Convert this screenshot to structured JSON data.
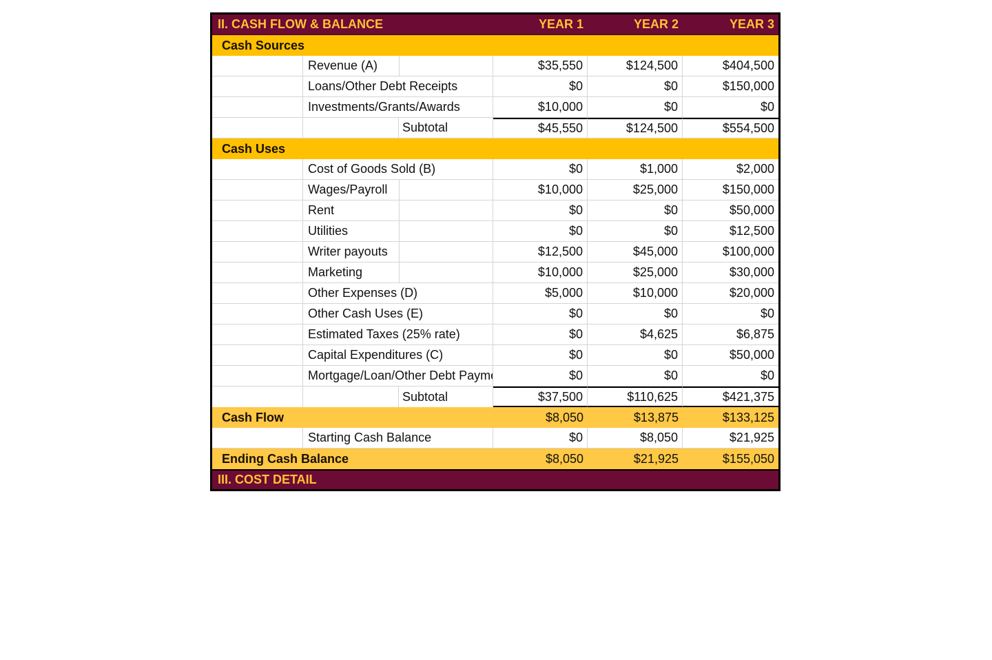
{
  "document": {
    "section_header": {
      "title": "II. CASH FLOW & BALANCE",
      "year_columns": [
        "YEAR 1",
        "YEAR 2",
        "YEAR 3"
      ]
    },
    "next_section_header": {
      "title": "III. COST DETAIL"
    },
    "colors": {
      "maroon": "#6C0B34",
      "gold_section": "#FFC000",
      "gold_total": "#FFC845",
      "gold_text": "#FFC233",
      "gridline": "#D5D5D5",
      "border": "#000000",
      "text": "#111111"
    },
    "rows": [
      {
        "type": "section",
        "label": "Cash Sources"
      },
      {
        "type": "data",
        "label": "Revenue (A)",
        "divider": true,
        "values": [
          "$35,550",
          "$124,500",
          "$404,500"
        ]
      },
      {
        "type": "data",
        "label": "Loans/Other Debt Receipts",
        "divider": false,
        "values": [
          "$0",
          "$0",
          "$150,000"
        ]
      },
      {
        "type": "data",
        "label": "Investments/Grants/Awards",
        "divider": false,
        "values": [
          "$10,000",
          "$0",
          "$0"
        ]
      },
      {
        "type": "subtotal",
        "label": "Subtotal",
        "border_top": true,
        "border_bottom": false,
        "values": [
          "$45,550",
          "$124,500",
          "$554,500"
        ]
      },
      {
        "type": "section",
        "label": "Cash Uses"
      },
      {
        "type": "data",
        "label": "Cost of Goods Sold (B)",
        "divider": false,
        "values": [
          "$0",
          "$1,000",
          "$2,000"
        ]
      },
      {
        "type": "data",
        "label": "Wages/Payroll",
        "divider": true,
        "values": [
          "$10,000",
          "$25,000",
          "$150,000"
        ]
      },
      {
        "type": "data",
        "label": "Rent",
        "divider": true,
        "values": [
          "$0",
          "$0",
          "$50,000"
        ]
      },
      {
        "type": "data",
        "label": "Utilities",
        "divider": true,
        "values": [
          "$0",
          "$0",
          "$12,500"
        ]
      },
      {
        "type": "data",
        "label": "Writer payouts",
        "divider": true,
        "values": [
          "$12,500",
          "$45,000",
          "$100,000"
        ]
      },
      {
        "type": "data",
        "label": "Marketing",
        "divider": true,
        "values": [
          "$10,000",
          "$25,000",
          "$30,000"
        ]
      },
      {
        "type": "data",
        "label": "Other Expenses (D)",
        "divider": false,
        "values": [
          "$5,000",
          "$10,000",
          "$20,000"
        ]
      },
      {
        "type": "data",
        "label": "Other Cash Uses (E)",
        "divider": false,
        "values": [
          "$0",
          "$0",
          "$0"
        ]
      },
      {
        "type": "data",
        "label": "Estimated Taxes (25% rate)",
        "divider": false,
        "values": [
          "$0",
          "$4,625",
          "$6,875"
        ]
      },
      {
        "type": "data",
        "label": "Capital Expenditures (C)",
        "divider": false,
        "values": [
          "$0",
          "$0",
          "$50,000"
        ]
      },
      {
        "type": "data",
        "label": "Mortgage/Loan/Other Debt Payme",
        "divider": false,
        "clip": true,
        "values": [
          "$0",
          "$0",
          "$0"
        ]
      },
      {
        "type": "subtotal",
        "label": "Subtotal",
        "border_top": true,
        "border_bottom": true,
        "values": [
          "$37,500",
          "$110,625",
          "$421,375"
        ]
      },
      {
        "type": "total",
        "label": "Cash Flow",
        "values": [
          "$8,050",
          "$13,875",
          "$133,125"
        ]
      },
      {
        "type": "data",
        "label": "Starting Cash Balance",
        "divider": false,
        "values": [
          "$0",
          "$8,050",
          "$21,925"
        ]
      },
      {
        "type": "total",
        "label": "Ending Cash Balance",
        "values": [
          "$8,050",
          "$21,925",
          "$155,050"
        ]
      }
    ]
  }
}
